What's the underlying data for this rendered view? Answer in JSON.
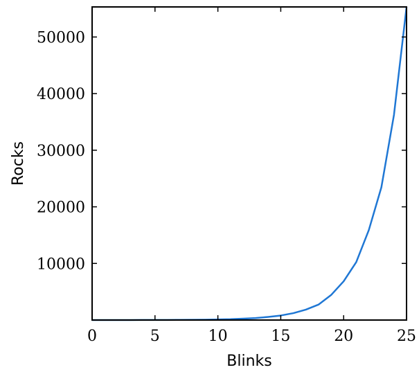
{
  "chart_data": {
    "type": "line",
    "title": "",
    "xlabel": "Blinks",
    "ylabel": "Rocks",
    "xlim": [
      0,
      25
    ],
    "ylim": [
      0,
      55312
    ],
    "xticks": [
      0,
      5,
      10,
      15,
      20,
      25
    ],
    "xtick_labels": [
      "0",
      "5",
      "10",
      "15",
      "20",
      "25"
    ],
    "yticks": [
      10000,
      20000,
      30000,
      40000,
      50000
    ],
    "ytick_labels": [
      "10000",
      "20000",
      "30000",
      "40000",
      "50000"
    ],
    "grid": false,
    "legend": "none",
    "line_color": "#1f77d4",
    "series": [
      {
        "x": [
          0,
          1,
          2,
          3,
          4,
          5,
          6,
          7,
          8,
          9,
          10,
          11,
          12,
          13,
          14,
          15,
          16,
          17,
          18,
          19,
          20,
          21,
          22,
          23,
          24,
          25
        ],
        "values": [
          2,
          3,
          4,
          5,
          9,
          13,
          22,
          31,
          39,
          62,
          106,
          148,
          240,
          348,
          552,
          801,
          1215,
          1839,
          2726,
          4414,
          6845,
          10228,
          15888,
          23446,
          36232,
          55312
        ]
      }
    ]
  }
}
